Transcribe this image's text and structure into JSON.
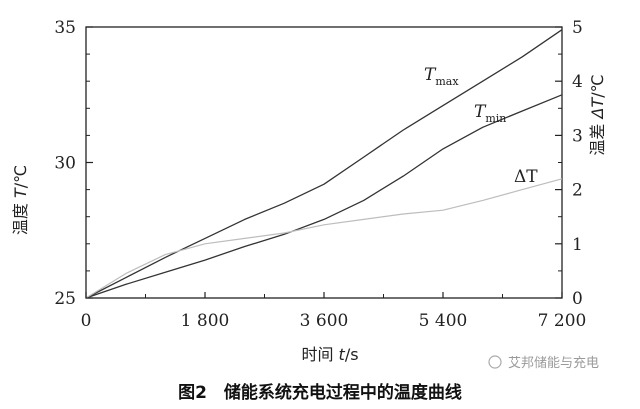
{
  "chart_data": {
    "type": "line",
    "xlabel_text": "时间 ",
    "xlabel_var": "t",
    "xlabel_unit": "/s",
    "ylabel_left_text": "温度 ",
    "ylabel_left_var": "T",
    "ylabel_left_unit": "/℃",
    "ylabel_right_text": "温差 ",
    "ylabel_right_var": "ΔT",
    "ylabel_right_unit": "/℃",
    "xlim": [
      0,
      7200
    ],
    "ylim_left": [
      25,
      35
    ],
    "ylim_right": [
      0,
      5
    ],
    "x_ticks": [
      0,
      1800,
      3600,
      5400,
      7200
    ],
    "x_tick_labels": [
      "0",
      "1 800",
      "3 600",
      "5 400",
      "7 200"
    ],
    "y_left_ticks": [
      25,
      30,
      35
    ],
    "y_left_tick_labels": [
      "25",
      "30",
      "35"
    ],
    "y_right_ticks": [
      0,
      1,
      2,
      3,
      4,
      5
    ],
    "y_right_tick_labels": [
      "0",
      "1",
      "2",
      "3",
      "4",
      "5"
    ],
    "series": [
      {
        "name": "T",
        "subscript": "max",
        "axis": "left",
        "color": "#333333",
        "x": [
          0,
          600,
          1200,
          1800,
          2400,
          3000,
          3600,
          4200,
          4800,
          5400,
          6000,
          6600,
          7200
        ],
        "y": [
          25.0,
          25.75,
          26.5,
          27.2,
          27.9,
          28.5,
          29.2,
          30.2,
          31.2,
          32.1,
          33.0,
          33.9,
          34.9
        ]
      },
      {
        "name": "T",
        "subscript": "min",
        "axis": "left",
        "color": "#333333",
        "x": [
          0,
          600,
          1200,
          1800,
          2400,
          3000,
          3600,
          4200,
          4800,
          5400,
          6000,
          6600,
          7200
        ],
        "y": [
          25.0,
          25.5,
          25.95,
          26.4,
          26.9,
          27.35,
          27.9,
          28.6,
          29.5,
          30.5,
          31.3,
          31.9,
          32.5
        ]
      },
      {
        "name": "ΔT",
        "subscript": "",
        "axis": "right",
        "color": "#bdbdbd",
        "x": [
          0,
          600,
          1200,
          1800,
          2400,
          3000,
          3600,
          4200,
          4800,
          5400,
          6000,
          6600,
          7200
        ],
        "y": [
          0.0,
          0.45,
          0.8,
          1.0,
          1.1,
          1.2,
          1.35,
          1.45,
          1.55,
          1.62,
          1.8,
          2.0,
          2.2
        ]
      }
    ],
    "curve_labels": [
      {
        "name": "T",
        "subscript": "max"
      },
      {
        "name": "T",
        "subscript": "min"
      },
      {
        "name": "ΔT",
        "subscript": ""
      }
    ],
    "grid": false,
    "legend": "inline labels"
  },
  "caption": "图2　储能系统充电过程中的温度曲线",
  "watermark": "艾邦储能与充电"
}
